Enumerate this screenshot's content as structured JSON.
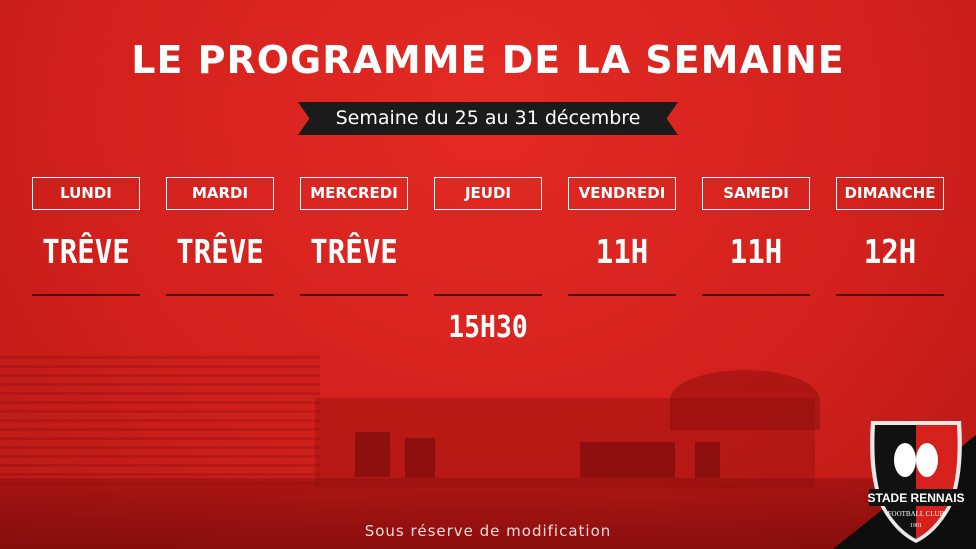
{
  "header": {
    "title": "LE PROGRAMME DE LA SEMAINE",
    "week": "Semaine du 25 au 31 décembre"
  },
  "days": [
    {
      "label": "LUNDI",
      "time": "TRÊVE",
      "time2": ""
    },
    {
      "label": "MARDI",
      "time": "TRÊVE",
      "time2": ""
    },
    {
      "label": "MERCREDI",
      "time": "TRÊVE",
      "time2": ""
    },
    {
      "label": "JEUDI",
      "time": "",
      "time2": "15H30"
    },
    {
      "label": "VENDREDI",
      "time": "11H",
      "time2": ""
    },
    {
      "label": "SAMEDI",
      "time": "11H",
      "time2": ""
    },
    {
      "label": "DIMANCHE",
      "time": "12H",
      "time2": ""
    }
  ],
  "footer": {
    "note": "Sous réserve de modification"
  },
  "logo": {
    "name": "STADE RENNAIS",
    "sub": "FOOTBALL CLUB",
    "year": "1901",
    "icon": "stade-rennais-crest-icon"
  },
  "colors": {
    "background": "#d8221f",
    "banner": "#1b1b1b",
    "text": "#ffffff"
  }
}
